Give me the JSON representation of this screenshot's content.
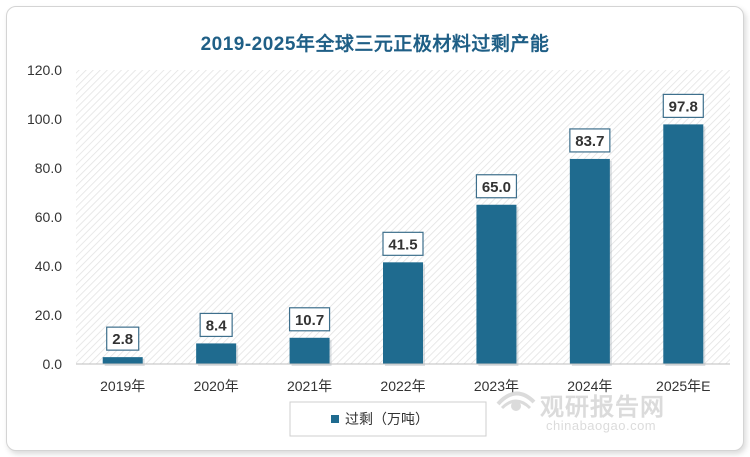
{
  "chart_data": {
    "type": "bar",
    "title": "2019-2025年全球三元正极材料过剩产能",
    "categories": [
      "2019年",
      "2020年",
      "2021年",
      "2022年",
      "2023年",
      "2024年",
      "2025年E"
    ],
    "series": [
      {
        "name": "过剩（万吨）",
        "values": [
          2.8,
          8.4,
          10.7,
          41.5,
          65.0,
          83.7,
          97.8
        ]
      }
    ],
    "data_labels": [
      "2.8",
      "8.4",
      "10.7",
      "41.5",
      "65.0",
      "83.7",
      "97.8"
    ],
    "y_ticks": [
      "0.0",
      "20.0",
      "40.0",
      "60.0",
      "80.0",
      "100.0",
      "120.0"
    ],
    "ylim": [
      0,
      120
    ],
    "legend_position": "bottom-left",
    "bar_color": "#1f6b8f",
    "plot_background": "diagonal-hatch",
    "grid": false
  },
  "watermark": {
    "logo_icon": "eye-swirl-icon",
    "title": "观研报告网",
    "url": "chinabaogao.com"
  }
}
